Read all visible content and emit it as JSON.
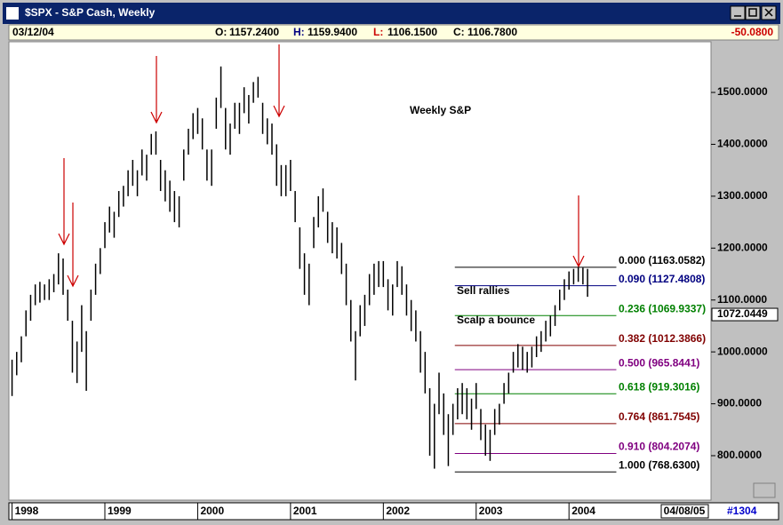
{
  "window": {
    "title": "$SPX - S&P Cash, Weekly",
    "date": "03/12/04",
    "readouts": [
      {
        "label": "O:",
        "value": "1157.2400"
      },
      {
        "label": "H:",
        "value": "1159.9400"
      },
      {
        "label": "L:",
        "value": "1106.1500"
      },
      {
        "label": "C:",
        "value": "1106.7800"
      }
    ],
    "change": "-50.0800",
    "footer_date": "04/08/05",
    "footer_id": "#1304"
  },
  "chart_data": {
    "type": "hl-bar",
    "title": "Weekly S&P",
    "color": "#000000",
    "x": [
      1998.0,
      1998.05,
      1998.1,
      1998.15,
      1998.2,
      1998.25,
      1998.3,
      1998.35,
      1998.4,
      1998.45,
      1998.5,
      1998.55,
      1998.6,
      1998.65,
      1998.7,
      1998.75,
      1998.8,
      1998.85,
      1998.9,
      1998.95,
      1999.0,
      1999.05,
      1999.1,
      1999.15,
      1999.2,
      1999.25,
      1999.3,
      1999.35,
      1999.4,
      1999.45,
      1999.5,
      1999.55,
      1999.6,
      1999.65,
      1999.7,
      1999.75,
      1999.8,
      1999.85,
      1999.9,
      1999.95,
      2000.0,
      2000.05,
      2000.1,
      2000.15,
      2000.2,
      2000.25,
      2000.3,
      2000.35,
      2000.4,
      2000.45,
      2000.5,
      2000.55,
      2000.6,
      2000.65,
      2000.7,
      2000.75,
      2000.8,
      2000.85,
      2000.9,
      2000.95,
      2001.0,
      2001.05,
      2001.1,
      2001.15,
      2001.2,
      2001.25,
      2001.3,
      2001.35,
      2001.4,
      2001.45,
      2001.5,
      2001.55,
      2001.6,
      2001.65,
      2001.7,
      2001.75,
      2001.8,
      2001.85,
      2001.9,
      2001.95,
      2002.0,
      2002.05,
      2002.1,
      2002.15,
      2002.2,
      2002.25,
      2002.3,
      2002.35,
      2002.4,
      2002.45,
      2002.5,
      2002.55,
      2002.6,
      2002.65,
      2002.7,
      2002.75,
      2002.8,
      2002.85,
      2002.9,
      2002.95,
      2003.0,
      2003.05,
      2003.1,
      2003.15,
      2003.2,
      2003.25,
      2003.3,
      2003.35,
      2003.4,
      2003.45,
      2003.5,
      2003.55,
      2003.6,
      2003.65,
      2003.7,
      2003.75,
      2003.8,
      2003.85,
      2003.9,
      2003.95,
      2004.0,
      2004.05,
      2004.1,
      2004.15,
      2004.2
    ],
    "high": [
      985,
      1000,
      1030,
      1080,
      1110,
      1130,
      1135,
      1130,
      1140,
      1150,
      1190,
      1180,
      1120,
      1060,
      1020,
      1090,
      1040,
      1120,
      1170,
      1200,
      1250,
      1280,
      1270,
      1310,
      1320,
      1350,
      1370,
      1350,
      1390,
      1380,
      1420,
      1425,
      1370,
      1350,
      1330,
      1310,
      1300,
      1390,
      1430,
      1460,
      1470,
      1450,
      1390,
      1390,
      1490,
      1550,
      1470,
      1440,
      1480,
      1480,
      1510,
      1495,
      1520,
      1530,
      1480,
      1450,
      1440,
      1400,
      1360,
      1360,
      1370,
      1310,
      1240,
      1190,
      1170,
      1260,
      1300,
      1315,
      1270,
      1250,
      1240,
      1210,
      1170,
      1100,
      1040,
      1090,
      1110,
      1150,
      1170,
      1175,
      1175,
      1140,
      1130,
      1175,
      1165,
      1130,
      1100,
      1080,
      1040,
      1000,
      930,
      900,
      960,
      920,
      880,
      900,
      930,
      940,
      930,
      910,
      940,
      890,
      860,
      850,
      890,
      900,
      940,
      960,
      1000,
      1015,
      1010,
      1000,
      1010,
      1030,
      1040,
      1060,
      1070,
      1090,
      1120,
      1140,
      1155,
      1160,
      1163,
      1162,
      1159.94
    ],
    "low": [
      915,
      955,
      980,
      1030,
      1060,
      1090,
      1095,
      1100,
      1100,
      1115,
      1130,
      1110,
      1060,
      960,
      940,
      1000,
      925,
      1060,
      1110,
      1150,
      1200,
      1230,
      1220,
      1260,
      1280,
      1300,
      1320,
      1300,
      1340,
      1330,
      1380,
      1380,
      1310,
      1290,
      1270,
      1250,
      1240,
      1330,
      1380,
      1410,
      1420,
      1390,
      1330,
      1320,
      1430,
      1470,
      1390,
      1380,
      1430,
      1420,
      1460,
      1440,
      1480,
      1490,
      1420,
      1400,
      1380,
      1320,
      1300,
      1300,
      1310,
      1250,
      1160,
      1110,
      1090,
      1200,
      1240,
      1270,
      1210,
      1190,
      1180,
      1150,
      1090,
      1020,
      945,
      1030,
      1050,
      1090,
      1110,
      1125,
      1125,
      1080,
      1070,
      1125,
      1110,
      1070,
      1040,
      1020,
      960,
      920,
      800,
      775,
      880,
      840,
      780,
      840,
      870,
      880,
      870,
      850,
      890,
      830,
      800,
      790,
      840,
      860,
      900,
      920,
      960,
      970,
      965,
      960,
      970,
      990,
      1000,
      1020,
      1030,
      1050,
      1080,
      1100,
      1120,
      1130,
      1135,
      1130,
      1106.15
    ],
    "xlim": [
      1997.985,
      2005.53
    ],
    "xticks": [
      1998,
      1999,
      2000,
      2001,
      2002,
      2003,
      2004
    ],
    "ylim": [
      719.5,
      1592.5
    ],
    "yticks": [
      {
        "value": 800,
        "label": "800.0000"
      },
      {
        "value": 900,
        "label": "900.0000"
      },
      {
        "value": 1000,
        "label": "1000.0000"
      },
      {
        "value": 1100,
        "label": "1100.0000"
      },
      {
        "value": 1200,
        "label": "1200.0000"
      },
      {
        "value": 1300,
        "label": "1300.0000"
      },
      {
        "value": 1400,
        "label": "1400.0000"
      },
      {
        "value": 1500,
        "label": "1500.0000"
      }
    ],
    "cursor": {
      "value": 1072.0449,
      "label": "1072.0449"
    },
    "fib_x": [
      2002.77,
      2004.51
    ],
    "fib_levels": [
      {
        "label": "0.000 (1163.0582)",
        "value": 1163.0582,
        "color": "#000000"
      },
      {
        "label": "0.090 (1127.4808)",
        "value": 1127.4808,
        "color": "#000080"
      },
      {
        "label": "0.236 (1069.9337)",
        "value": 1069.9337,
        "color": "#008000"
      },
      {
        "label": "0.382 (1012.3866)",
        "value": 1012.3866,
        "color": "#800000"
      },
      {
        "label": "0.500 (965.8441)",
        "value": 965.8441,
        "color": "#800080"
      },
      {
        "label": "0.618 (919.3016)",
        "value": 919.3016,
        "color": "#008000"
      },
      {
        "label": "0.764 (861.7545)",
        "value": 861.7545,
        "color": "#800000"
      },
      {
        "label": "0.910 (804.2074)",
        "value": 804.2074,
        "color": "#800080"
      },
      {
        "label": "1.000 (768.6300)",
        "value": 768.63,
        "color": "#000000"
      }
    ],
    "annotations": [
      "Sell rallies",
      "Scalp a bounce"
    ]
  }
}
